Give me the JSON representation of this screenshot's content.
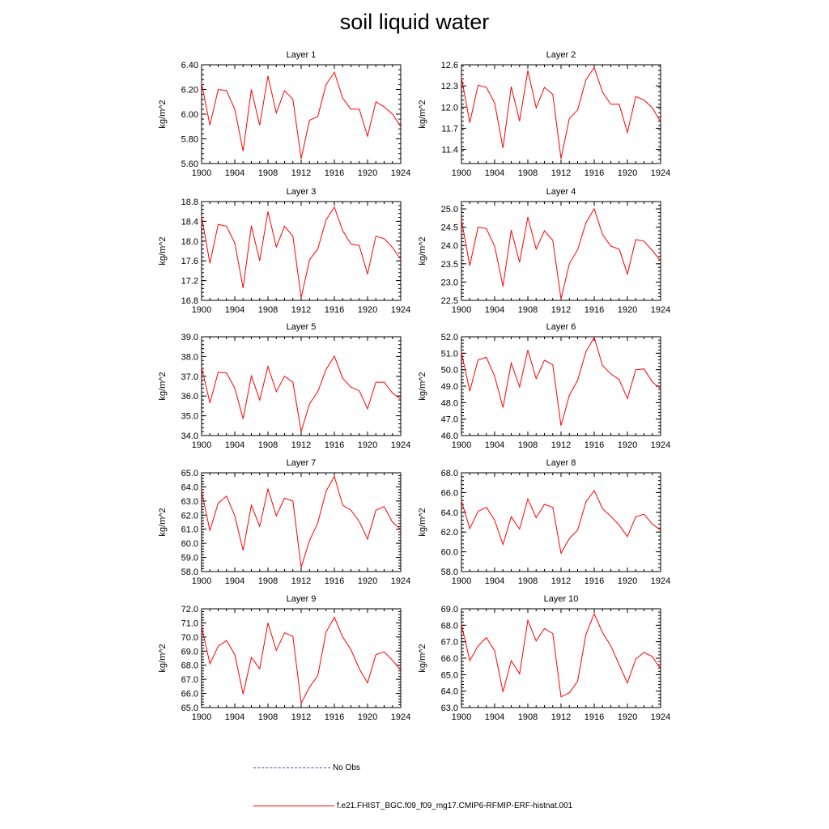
{
  "title": "soil liquid water",
  "colors": {
    "model": "#ff0000",
    "obs": "#4a4ad6",
    "axis": "#000000"
  },
  "legend": {
    "obs_label": "No Obs",
    "model_label": "f.e21.FHIST_BGC.f09_f09_mg17.CMIP6-RFMIP-ERF-histnat.001"
  },
  "chart_data": [
    {
      "type": "line",
      "title": "Layer 1",
      "ylabel": "kg/m^2",
      "xlim": [
        1900,
        1924
      ],
      "ylim": [
        5.6,
        6.4
      ],
      "xticks": [
        "1900",
        "1904",
        "1908",
        "1912",
        "1916",
        "1920",
        "1924"
      ],
      "yticks": [
        "5.60",
        "5.80",
        "6.00",
        "6.20",
        "6.40"
      ],
      "x": [
        1900,
        1901,
        1902,
        1903,
        1904,
        1905,
        1906,
        1907,
        1908,
        1909,
        1910,
        1911,
        1912,
        1913,
        1914,
        1915,
        1916,
        1917,
        1918,
        1919,
        1920,
        1921,
        1922,
        1923,
        1924
      ],
      "series": [
        {
          "values": [
            6.25,
            5.91,
            6.2,
            6.19,
            6.04,
            5.7,
            6.2,
            5.91,
            6.31,
            6.01,
            6.19,
            6.12,
            5.64,
            5.95,
            5.98,
            6.24,
            6.34,
            6.13,
            6.04,
            6.04,
            5.82,
            6.1,
            6.06,
            6.0,
            5.9
          ]
        }
      ]
    },
    {
      "type": "line",
      "title": "Layer 2",
      "ylabel": "kg/m^2",
      "xlim": [
        1900,
        1924
      ],
      "ylim": [
        11.2,
        12.6
      ],
      "xticks": [
        "1900",
        "1904",
        "1908",
        "1912",
        "1916",
        "1920",
        "1924"
      ],
      "yticks": [
        "11.4",
        "11.7",
        "12.0",
        "12.3",
        "12.6"
      ],
      "x": [
        1900,
        1901,
        1902,
        1903,
        1904,
        1905,
        1906,
        1907,
        1908,
        1909,
        1910,
        1911,
        1912,
        1913,
        1914,
        1915,
        1916,
        1917,
        1918,
        1919,
        1920,
        1921,
        1922,
        1923,
        1924
      ],
      "series": [
        {
          "values": [
            12.42,
            11.78,
            12.31,
            12.28,
            12.06,
            11.42,
            12.29,
            11.8,
            12.52,
            11.99,
            12.28,
            12.18,
            11.27,
            11.84,
            11.96,
            12.39,
            12.56,
            12.21,
            12.04,
            12.04,
            11.64,
            12.15,
            12.1,
            11.99,
            11.79
          ]
        }
      ]
    },
    {
      "type": "line",
      "title": "Layer 3",
      "ylabel": "kg/m^2",
      "xlim": [
        1900,
        1924
      ],
      "ylim": [
        16.8,
        18.8
      ],
      "xticks": [
        "1900",
        "1904",
        "1908",
        "1912",
        "1916",
        "1920",
        "1924"
      ],
      "yticks": [
        "16.8",
        "17.2",
        "17.6",
        "18.0",
        "18.4",
        "18.8"
      ],
      "x": [
        1900,
        1901,
        1902,
        1903,
        1904,
        1905,
        1906,
        1907,
        1908,
        1909,
        1910,
        1911,
        1912,
        1913,
        1914,
        1915,
        1916,
        1917,
        1918,
        1919,
        1920,
        1921,
        1922,
        1923,
        1924
      ],
      "series": [
        {
          "values": [
            18.5,
            17.55,
            18.34,
            18.3,
            17.96,
            17.05,
            18.31,
            17.6,
            18.6,
            17.88,
            18.3,
            18.1,
            16.85,
            17.62,
            17.84,
            18.43,
            18.69,
            18.21,
            17.94,
            17.91,
            17.33,
            18.1,
            18.05,
            17.87,
            17.63
          ]
        }
      ]
    },
    {
      "type": "line",
      "title": "Layer 4",
      "ylabel": "kg/m^2",
      "xlim": [
        1900,
        1924
      ],
      "ylim": [
        22.5,
        25.2
      ],
      "xticks": [
        "1900",
        "1904",
        "1908",
        "1912",
        "1916",
        "1920",
        "1924"
      ],
      "yticks": [
        "22.5",
        "23.0",
        "23.5",
        "24.0",
        "24.5",
        "25.0"
      ],
      "x": [
        1900,
        1901,
        1902,
        1903,
        1904,
        1905,
        1906,
        1907,
        1908,
        1909,
        1910,
        1911,
        1912,
        1913,
        1914,
        1915,
        1916,
        1917,
        1918,
        1919,
        1920,
        1921,
        1922,
        1923,
        1924
      ],
      "series": [
        {
          "values": [
            24.7,
            23.45,
            24.5,
            24.46,
            23.98,
            22.88,
            24.42,
            23.54,
            24.78,
            23.9,
            24.4,
            24.14,
            22.54,
            23.5,
            23.88,
            24.62,
            25.0,
            24.3,
            23.98,
            23.9,
            23.22,
            24.16,
            24.12,
            23.86,
            23.58
          ]
        }
      ]
    },
    {
      "type": "line",
      "title": "Layer 5",
      "ylabel": "kg/m^2",
      "xlim": [
        1900,
        1924
      ],
      "ylim": [
        34.0,
        39.0
      ],
      "xticks": [
        "1900",
        "1904",
        "1908",
        "1912",
        "1916",
        "1920",
        "1924"
      ],
      "yticks": [
        "34.0",
        "35.0",
        "36.0",
        "37.0",
        "38.0",
        "39.0"
      ],
      "x": [
        1900,
        1901,
        1902,
        1903,
        1904,
        1905,
        1906,
        1907,
        1908,
        1909,
        1910,
        1911,
        1912,
        1913,
        1914,
        1915,
        1916,
        1917,
        1918,
        1919,
        1920,
        1921,
        1922,
        1923,
        1924
      ],
      "series": [
        {
          "values": [
            37.45,
            35.65,
            37.2,
            37.17,
            36.4,
            34.85,
            37.02,
            35.8,
            37.5,
            36.22,
            37.0,
            36.7,
            34.2,
            35.6,
            36.22,
            37.35,
            38.02,
            36.9,
            36.45,
            36.27,
            35.35,
            36.7,
            36.7,
            36.15,
            35.85
          ]
        }
      ]
    },
    {
      "type": "line",
      "title": "Layer 6",
      "ylabel": "kg/m^2",
      "xlim": [
        1900,
        1924
      ],
      "ylim": [
        46.0,
        52.0
      ],
      "xticks": [
        "1900",
        "1904",
        "1908",
        "1912",
        "1916",
        "1920",
        "1924"
      ],
      "yticks": [
        "46.0",
        "47.0",
        "48.0",
        "49.0",
        "50.0",
        "51.0",
        "52.0"
      ],
      "x": [
        1900,
        1901,
        1902,
        1903,
        1904,
        1905,
        1906,
        1907,
        1908,
        1909,
        1910,
        1911,
        1912,
        1913,
        1914,
        1915,
        1916,
        1917,
        1918,
        1919,
        1920,
        1921,
        1922,
        1923,
        1924
      ],
      "series": [
        {
          "values": [
            51.05,
            48.7,
            50.6,
            50.75,
            49.6,
            47.7,
            50.4,
            48.95,
            51.2,
            49.45,
            50.58,
            50.3,
            46.6,
            48.45,
            49.35,
            51.1,
            51.95,
            50.25,
            49.75,
            49.4,
            48.25,
            50.0,
            50.05,
            49.25,
            48.85
          ]
        }
      ]
    },
    {
      "type": "line",
      "title": "Layer 7",
      "ylabel": "kg/m^2",
      "xlim": [
        1900,
        1924
      ],
      "ylim": [
        58.0,
        65.0
      ],
      "xticks": [
        "1900",
        "1904",
        "1908",
        "1912",
        "1916",
        "1920",
        "1924"
      ],
      "yticks": [
        "58.0",
        "59.0",
        "60.0",
        "61.0",
        "62.0",
        "63.0",
        "64.0",
        "65.0"
      ],
      "x": [
        1900,
        1901,
        1902,
        1903,
        1904,
        1905,
        1906,
        1907,
        1908,
        1909,
        1910,
        1911,
        1912,
        1913,
        1914,
        1915,
        1916,
        1917,
        1918,
        1919,
        1920,
        1921,
        1922,
        1923,
        1924
      ],
      "series": [
        {
          "values": [
            63.7,
            60.9,
            62.85,
            63.35,
            61.95,
            59.5,
            62.7,
            61.2,
            63.85,
            61.95,
            63.2,
            63.0,
            58.3,
            60.2,
            61.45,
            63.7,
            64.75,
            62.7,
            62.35,
            61.55,
            60.3,
            62.35,
            62.6,
            61.5,
            61.0
          ]
        }
      ]
    },
    {
      "type": "line",
      "title": "Layer 8",
      "ylabel": "kg/m^2",
      "xlim": [
        1900,
        1924
      ],
      "ylim": [
        58.0,
        68.0
      ],
      "xticks": [
        "1900",
        "1904",
        "1908",
        "1912",
        "1916",
        "1920",
        "1924"
      ],
      "yticks": [
        "58.0",
        "60.0",
        "62.0",
        "64.0",
        "66.0",
        "68.0"
      ],
      "x": [
        1900,
        1901,
        1902,
        1903,
        1904,
        1905,
        1906,
        1907,
        1908,
        1909,
        1910,
        1911,
        1912,
        1913,
        1914,
        1915,
        1916,
        1917,
        1918,
        1919,
        1920,
        1921,
        1922,
        1923,
        1924
      ],
      "series": [
        {
          "values": [
            65.15,
            62.35,
            64.1,
            64.5,
            63.2,
            60.75,
            63.55,
            62.3,
            65.35,
            63.45,
            64.8,
            64.5,
            59.85,
            61.35,
            62.2,
            65.05,
            66.2,
            64.35,
            63.6,
            62.7,
            61.55,
            63.55,
            63.8,
            62.8,
            62.2
          ]
        }
      ]
    },
    {
      "type": "line",
      "title": "Layer 9",
      "ylabel": "kg/m^2",
      "xlim": [
        1900,
        1924
      ],
      "ylim": [
        65.0,
        72.0
      ],
      "xticks": [
        "1900",
        "1904",
        "1908",
        "1912",
        "1916",
        "1920",
        "1924"
      ],
      "yticks": [
        "65.0",
        "66.0",
        "67.0",
        "68.0",
        "69.0",
        "70.0",
        "71.0",
        "72.0"
      ],
      "x": [
        1900,
        1901,
        1902,
        1903,
        1904,
        1905,
        1906,
        1907,
        1908,
        1909,
        1910,
        1911,
        1912,
        1913,
        1914,
        1915,
        1916,
        1917,
        1918,
        1919,
        1920,
        1921,
        1922,
        1923,
        1924
      ],
      "series": [
        {
          "values": [
            70.75,
            68.1,
            69.35,
            69.75,
            68.75,
            65.95,
            68.55,
            67.75,
            71.0,
            69.05,
            70.3,
            70.05,
            65.3,
            66.45,
            67.25,
            70.35,
            71.4,
            70.0,
            69.1,
            67.75,
            66.75,
            68.75,
            68.95,
            68.35,
            67.65
          ]
        }
      ]
    },
    {
      "type": "line",
      "title": "Layer 10",
      "ylabel": "kg/m^2",
      "xlim": [
        1900,
        1924
      ],
      "ylim": [
        63.0,
        69.0
      ],
      "xticks": [
        "1900",
        "1904",
        "1908",
        "1912",
        "1916",
        "1920",
        "1924"
      ],
      "yticks": [
        "63.0",
        "64.0",
        "65.0",
        "66.0",
        "67.0",
        "68.0",
        "69.0"
      ],
      "x": [
        1900,
        1901,
        1902,
        1903,
        1904,
        1905,
        1906,
        1907,
        1908,
        1909,
        1910,
        1911,
        1912,
        1913,
        1914,
        1915,
        1916,
        1917,
        1918,
        1919,
        1920,
        1921,
        1922,
        1923,
        1924
      ],
      "series": [
        {
          "values": [
            68.05,
            65.85,
            66.75,
            67.25,
            66.45,
            63.95,
            65.85,
            65.05,
            68.3,
            67.05,
            67.8,
            67.5,
            63.65,
            63.9,
            64.6,
            67.45,
            68.7,
            67.55,
            66.75,
            65.6,
            64.5,
            65.95,
            66.35,
            66.1,
            65.35
          ]
        }
      ]
    }
  ]
}
